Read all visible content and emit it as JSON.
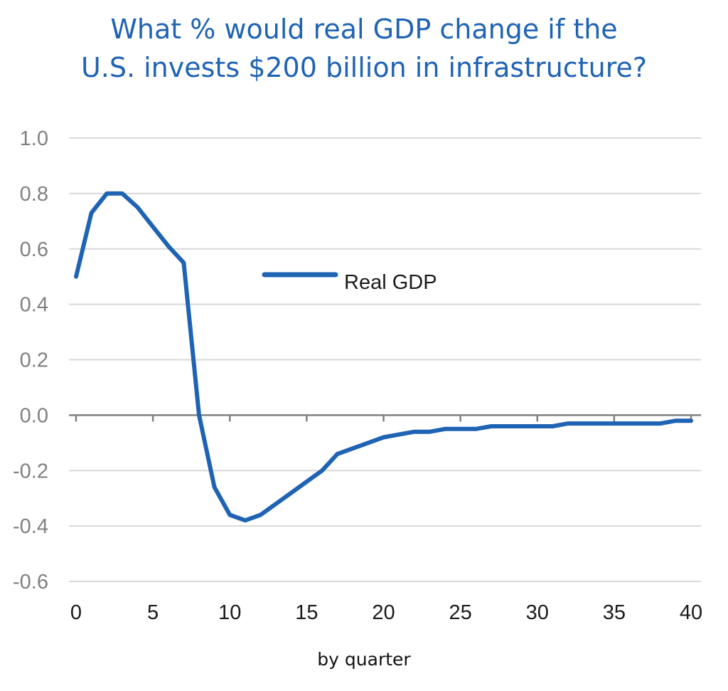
{
  "title_lines": [
    "What % would real GDP change if the",
    "U.S. invests $200 billion in infrastructure?"
  ],
  "chart_data": {
    "type": "line",
    "title": "What % would real GDP change if the U.S. invests $200 billion in infrastructure?",
    "xlabel": "by quarter",
    "ylabel": "",
    "xlim": [
      0,
      40
    ],
    "ylim": [
      -0.6,
      1.0
    ],
    "x_ticks": [
      "0",
      "5",
      "10",
      "15",
      "20",
      "25",
      "30",
      "35",
      "40"
    ],
    "y_ticks": [
      "1.0",
      "0.8",
      "0.6",
      "0.4",
      "0.2",
      "0.0",
      "-0.2",
      "-0.4",
      "-0.6"
    ],
    "grid": true,
    "legend": "center-right",
    "colors": {
      "line": "#1f63b4",
      "grid": "#d9d9d9",
      "axis": "#808080"
    },
    "series": [
      {
        "name": "Real GDP",
        "x": [
          0,
          1,
          2,
          3,
          4,
          5,
          6,
          7,
          8,
          9,
          10,
          11,
          12,
          13,
          14,
          15,
          16,
          17,
          18,
          19,
          20,
          21,
          22,
          23,
          24,
          25,
          26,
          27,
          28,
          29,
          30,
          31,
          32,
          33,
          34,
          35,
          36,
          37,
          38,
          39,
          40
        ],
        "values": [
          0.5,
          0.73,
          0.8,
          0.8,
          0.75,
          0.68,
          0.61,
          0.55,
          0.0,
          -0.26,
          -0.36,
          -0.38,
          -0.36,
          -0.32,
          -0.28,
          -0.24,
          -0.2,
          -0.14,
          -0.12,
          -0.1,
          -0.08,
          -0.07,
          -0.06,
          -0.06,
          -0.05,
          -0.05,
          -0.05,
          -0.04,
          -0.04,
          -0.04,
          -0.04,
          -0.04,
          -0.03,
          -0.03,
          -0.03,
          -0.03,
          -0.03,
          -0.03,
          -0.03,
          -0.02,
          -0.02
        ]
      }
    ]
  }
}
